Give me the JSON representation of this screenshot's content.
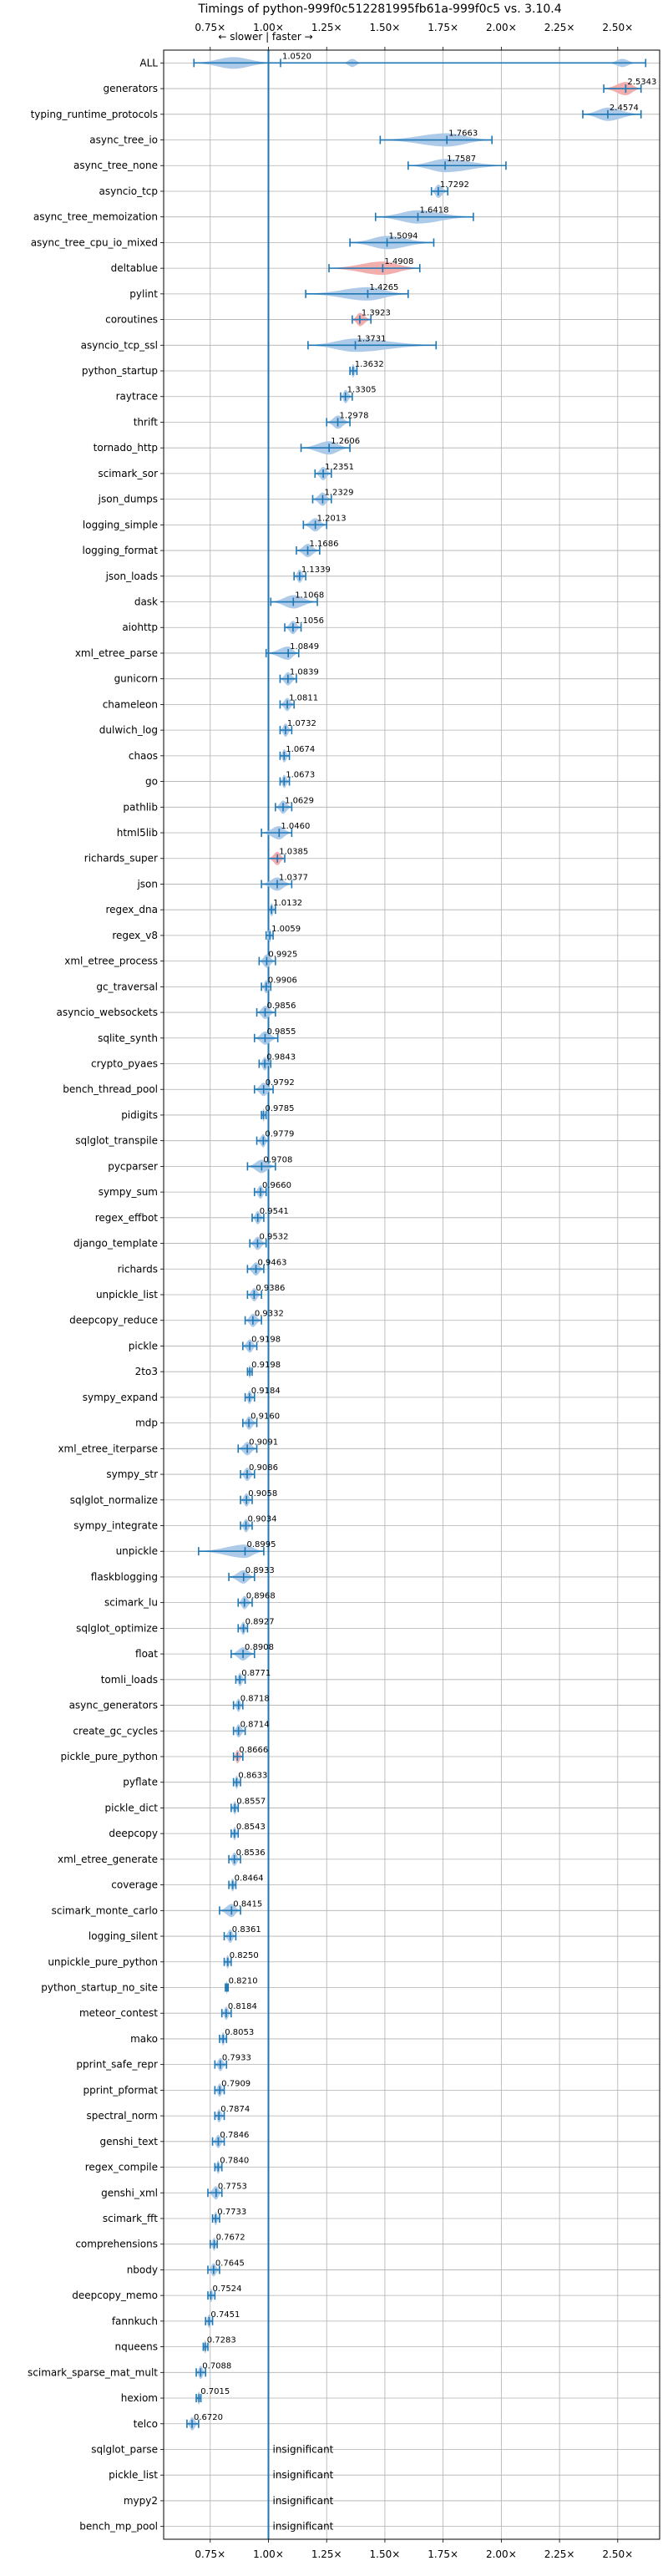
{
  "chart_data": {
    "type": "violin",
    "title": "Timings of python-999f0c512281995fb61a-999f0c5 vs. 3.10.4",
    "direction_label": "← slower | faster →",
    "xlim": [
      0.55,
      2.68
    ],
    "x_ticks": [
      {
        "value": 0.75,
        "label": "0.75×"
      },
      {
        "value": 1.0,
        "label": "1.00×"
      },
      {
        "value": 1.25,
        "label": "1.25×"
      },
      {
        "value": 1.5,
        "label": "1.50×"
      },
      {
        "value": 1.75,
        "label": "1.75×"
      },
      {
        "value": 2.0,
        "label": "2.00×"
      },
      {
        "value": 2.25,
        "label": "2.25×"
      },
      {
        "value": 2.5,
        "label": "2.50×"
      }
    ],
    "grid": true,
    "reference_line": 1.0,
    "colors": {
      "violin_blue": "#a9c8e8",
      "violin_red": "#f1a9a9",
      "line_blue": "#1f77b4",
      "grid": "#b0b0b0",
      "text": "#000000"
    },
    "insignificant_label": "insignificant",
    "benchmarks": [
      {
        "name": "ALL",
        "median": 1.052,
        "label": "1.0520",
        "lo": 0.68,
        "hi": 2.62,
        "mode": "all"
      },
      {
        "name": "generators",
        "median": 2.5343,
        "label": "2.5343",
        "lo": 2.44,
        "hi": 2.6,
        "mode": "red"
      },
      {
        "name": "typing_runtime_protocols",
        "median": 2.4574,
        "label": "2.4574",
        "lo": 2.35,
        "hi": 2.6
      },
      {
        "name": "async_tree_io",
        "median": 1.7663,
        "label": "1.7663",
        "lo": 1.48,
        "hi": 1.96
      },
      {
        "name": "async_tree_none",
        "median": 1.7587,
        "label": "1.7587",
        "lo": 1.6,
        "hi": 2.02
      },
      {
        "name": "asyncio_tcp",
        "median": 1.7292,
        "label": "1.7292",
        "lo": 1.7,
        "hi": 1.77
      },
      {
        "name": "async_tree_memoization",
        "median": 1.6418,
        "label": "1.6418",
        "lo": 1.46,
        "hi": 1.88
      },
      {
        "name": "async_tree_cpu_io_mixed",
        "median": 1.5094,
        "label": "1.5094",
        "lo": 1.35,
        "hi": 1.71
      },
      {
        "name": "deltablue",
        "median": 1.4908,
        "label": "1.4908",
        "lo": 1.26,
        "hi": 1.65,
        "mode": "red"
      },
      {
        "name": "pylint",
        "median": 1.4265,
        "label": "1.4265",
        "lo": 1.16,
        "hi": 1.6
      },
      {
        "name": "coroutines",
        "median": 1.3923,
        "label": "1.3923",
        "lo": 1.36,
        "hi": 1.44,
        "mode": "red"
      },
      {
        "name": "asyncio_tcp_ssl",
        "median": 1.3731,
        "label": "1.3731",
        "lo": 1.17,
        "hi": 1.72
      },
      {
        "name": "python_startup",
        "median": 1.3632,
        "label": "1.3632",
        "lo": 1.35,
        "hi": 1.38
      },
      {
        "name": "raytrace",
        "median": 1.3305,
        "label": "1.3305",
        "lo": 1.31,
        "hi": 1.36
      },
      {
        "name": "thrift",
        "median": 1.2978,
        "label": "1.2978",
        "lo": 1.25,
        "hi": 1.35
      },
      {
        "name": "tornado_http",
        "median": 1.2606,
        "label": "1.2606",
        "lo": 1.14,
        "hi": 1.35
      },
      {
        "name": "scimark_sor",
        "median": 1.2351,
        "label": "1.2351",
        "lo": 1.2,
        "hi": 1.27
      },
      {
        "name": "json_dumps",
        "median": 1.2329,
        "label": "1.2329",
        "lo": 1.19,
        "hi": 1.27
      },
      {
        "name": "logging_simple",
        "median": 1.2013,
        "label": "1.2013",
        "lo": 1.15,
        "hi": 1.25
      },
      {
        "name": "logging_format",
        "median": 1.1686,
        "label": "1.1686",
        "lo": 1.12,
        "hi": 1.22
      },
      {
        "name": "json_loads",
        "median": 1.1339,
        "label": "1.1339",
        "lo": 1.11,
        "hi": 1.16
      },
      {
        "name": "dask",
        "median": 1.1068,
        "label": "1.1068",
        "lo": 1.01,
        "hi": 1.21
      },
      {
        "name": "aiohttp",
        "median": 1.1056,
        "label": "1.1056",
        "lo": 1.07,
        "hi": 1.14
      },
      {
        "name": "xml_etree_parse",
        "median": 1.0849,
        "label": "1.0849",
        "lo": 0.99,
        "hi": 1.13
      },
      {
        "name": "gunicorn",
        "median": 1.0839,
        "label": "1.0839",
        "lo": 1.05,
        "hi": 1.12
      },
      {
        "name": "chameleon",
        "median": 1.0811,
        "label": "1.0811",
        "lo": 1.05,
        "hi": 1.11
      },
      {
        "name": "dulwich_log",
        "median": 1.0732,
        "label": "1.0732",
        "lo": 1.05,
        "hi": 1.1
      },
      {
        "name": "chaos",
        "median": 1.0674,
        "label": "1.0674",
        "lo": 1.05,
        "hi": 1.09
      },
      {
        "name": "go",
        "median": 1.0673,
        "label": "1.0673",
        "lo": 1.05,
        "hi": 1.09
      },
      {
        "name": "pathlib",
        "median": 1.0629,
        "label": "1.0629",
        "lo": 1.03,
        "hi": 1.1
      },
      {
        "name": "html5lib",
        "median": 1.046,
        "label": "1.0460",
        "lo": 0.97,
        "hi": 1.1
      },
      {
        "name": "richards_super",
        "median": 1.0385,
        "label": "1.0385",
        "lo": 1.0,
        "hi": 1.07,
        "mode": "red"
      },
      {
        "name": "json",
        "median": 1.0377,
        "label": "1.0377",
        "lo": 0.97,
        "hi": 1.1
      },
      {
        "name": "regex_dna",
        "median": 1.0132,
        "label": "1.0132",
        "lo": 1.0,
        "hi": 1.03
      },
      {
        "name": "regex_v8",
        "median": 1.0059,
        "label": "1.0059",
        "lo": 0.99,
        "hi": 1.02
      },
      {
        "name": "xml_etree_process",
        "median": 0.9925,
        "label": "0.9925",
        "lo": 0.96,
        "hi": 1.03
      },
      {
        "name": "gc_traversal",
        "median": 0.9906,
        "label": "0.9906",
        "lo": 0.97,
        "hi": 1.01
      },
      {
        "name": "asyncio_websockets",
        "median": 0.9856,
        "label": "0.9856",
        "lo": 0.95,
        "hi": 1.03
      },
      {
        "name": "sqlite_synth",
        "median": 0.9855,
        "label": "0.9855",
        "lo": 0.94,
        "hi": 1.04
      },
      {
        "name": "crypto_pyaes",
        "median": 0.9843,
        "label": "0.9843",
        "lo": 0.96,
        "hi": 1.01
      },
      {
        "name": "bench_thread_pool",
        "median": 0.9792,
        "label": "0.9792",
        "lo": 0.94,
        "hi": 1.02
      },
      {
        "name": "pidigits",
        "median": 0.9785,
        "label": "0.9785",
        "lo": 0.97,
        "hi": 0.99
      },
      {
        "name": "sqlglot_transpile",
        "median": 0.9779,
        "label": "0.9779",
        "lo": 0.95,
        "hi": 1.0
      },
      {
        "name": "pycparser",
        "median": 0.9708,
        "label": "0.9708",
        "lo": 0.91,
        "hi": 1.03
      },
      {
        "name": "sympy_sum",
        "median": 0.966,
        "label": "0.9660",
        "lo": 0.94,
        "hi": 0.99
      },
      {
        "name": "regex_effbot",
        "median": 0.9541,
        "label": "0.9541",
        "lo": 0.93,
        "hi": 0.98
      },
      {
        "name": "django_template",
        "median": 0.9532,
        "label": "0.9532",
        "lo": 0.92,
        "hi": 0.99
      },
      {
        "name": "richards",
        "median": 0.9463,
        "label": "0.9463",
        "lo": 0.91,
        "hi": 0.98
      },
      {
        "name": "unpickle_list",
        "median": 0.9386,
        "label": "0.9386",
        "lo": 0.91,
        "hi": 0.97
      },
      {
        "name": "deepcopy_reduce",
        "median": 0.9332,
        "label": "0.9332",
        "lo": 0.9,
        "hi": 0.97
      },
      {
        "name": "pickle",
        "median": 0.9198,
        "label": "0.9198",
        "lo": 0.89,
        "hi": 0.95
      },
      {
        "name": "2to3",
        "median": 0.9198,
        "label": "0.9198",
        "lo": 0.91,
        "hi": 0.93
      },
      {
        "name": "sympy_expand",
        "median": 0.9184,
        "label": "0.9184",
        "lo": 0.9,
        "hi": 0.94
      },
      {
        "name": "mdp",
        "median": 0.916,
        "label": "0.9160",
        "lo": 0.89,
        "hi": 0.95
      },
      {
        "name": "xml_etree_iterparse",
        "median": 0.9091,
        "label": "0.9091",
        "lo": 0.87,
        "hi": 0.95
      },
      {
        "name": "sympy_str",
        "median": 0.9086,
        "label": "0.9086",
        "lo": 0.88,
        "hi": 0.94
      },
      {
        "name": "sqlglot_normalize",
        "median": 0.9058,
        "label": "0.9058",
        "lo": 0.88,
        "hi": 0.93
      },
      {
        "name": "sympy_integrate",
        "median": 0.9034,
        "label": "0.9034",
        "lo": 0.88,
        "hi": 0.93
      },
      {
        "name": "unpickle",
        "median": 0.8995,
        "label": "0.8995",
        "lo": 0.7,
        "hi": 0.98
      },
      {
        "name": "flaskblogging",
        "median": 0.8933,
        "label": "0.8933",
        "lo": 0.83,
        "hi": 0.94
      },
      {
        "name": "scimark_lu",
        "median": 0.8968,
        "label": "0.8968",
        "lo": 0.87,
        "hi": 0.93
      },
      {
        "name": "sqlglot_optimize",
        "median": 0.8927,
        "label": "0.8927",
        "lo": 0.87,
        "hi": 0.91
      },
      {
        "name": "float",
        "median": 0.8908,
        "label": "0.8908",
        "lo": 0.84,
        "hi": 0.94
      },
      {
        "name": "tomli_loads",
        "median": 0.8771,
        "label": "0.8771",
        "lo": 0.86,
        "hi": 0.9
      },
      {
        "name": "async_generators",
        "median": 0.8718,
        "label": "0.8718",
        "lo": 0.85,
        "hi": 0.89
      },
      {
        "name": "create_gc_cycles",
        "median": 0.8714,
        "label": "0.8714",
        "lo": 0.85,
        "hi": 0.9
      },
      {
        "name": "pickle_pure_python",
        "median": 0.8666,
        "label": "0.8666",
        "lo": 0.85,
        "hi": 0.89,
        "mode": "red"
      },
      {
        "name": "pyflate",
        "median": 0.8633,
        "label": "0.8633",
        "lo": 0.85,
        "hi": 0.88
      },
      {
        "name": "pickle_dict",
        "median": 0.8557,
        "label": "0.8557",
        "lo": 0.84,
        "hi": 0.87
      },
      {
        "name": "deepcopy",
        "median": 0.8543,
        "label": "0.8543",
        "lo": 0.84,
        "hi": 0.87
      },
      {
        "name": "xml_etree_generate",
        "median": 0.8536,
        "label": "0.8536",
        "lo": 0.83,
        "hi": 0.88
      },
      {
        "name": "coverage",
        "median": 0.8464,
        "label": "0.8464",
        "lo": 0.83,
        "hi": 0.86
      },
      {
        "name": "scimark_monte_carlo",
        "median": 0.8415,
        "label": "0.8415",
        "lo": 0.79,
        "hi": 0.88
      },
      {
        "name": "logging_silent",
        "median": 0.8361,
        "label": "0.8361",
        "lo": 0.81,
        "hi": 0.86
      },
      {
        "name": "unpickle_pure_python",
        "median": 0.825,
        "label": "0.8250",
        "lo": 0.81,
        "hi": 0.84
      },
      {
        "name": "python_startup_no_site",
        "median": 0.821,
        "label": "0.8210",
        "lo": 0.815,
        "hi": 0.827
      },
      {
        "name": "meteor_contest",
        "median": 0.8184,
        "label": "0.8184",
        "lo": 0.8,
        "hi": 0.84
      },
      {
        "name": "mako",
        "median": 0.8053,
        "label": "0.8053",
        "lo": 0.79,
        "hi": 0.82
      },
      {
        "name": "pprint_safe_repr",
        "median": 0.7933,
        "label": "0.7933",
        "lo": 0.77,
        "hi": 0.82
      },
      {
        "name": "pprint_pformat",
        "median": 0.7909,
        "label": "0.7909",
        "lo": 0.77,
        "hi": 0.81
      },
      {
        "name": "spectral_norm",
        "median": 0.7874,
        "label": "0.7874",
        "lo": 0.77,
        "hi": 0.81
      },
      {
        "name": "genshi_text",
        "median": 0.7846,
        "label": "0.7846",
        "lo": 0.76,
        "hi": 0.81
      },
      {
        "name": "regex_compile",
        "median": 0.784,
        "label": "0.7840",
        "lo": 0.77,
        "hi": 0.8
      },
      {
        "name": "genshi_xml",
        "median": 0.7753,
        "label": "0.7753",
        "lo": 0.74,
        "hi": 0.8
      },
      {
        "name": "scimark_fft",
        "median": 0.7733,
        "label": "0.7733",
        "lo": 0.76,
        "hi": 0.79
      },
      {
        "name": "comprehensions",
        "median": 0.7672,
        "label": "0.7672",
        "lo": 0.75,
        "hi": 0.78
      },
      {
        "name": "nbody",
        "median": 0.7645,
        "label": "0.7645",
        "lo": 0.74,
        "hi": 0.79
      },
      {
        "name": "deepcopy_memo",
        "median": 0.7524,
        "label": "0.7524",
        "lo": 0.74,
        "hi": 0.77
      },
      {
        "name": "fannkuch",
        "median": 0.7451,
        "label": "0.7451",
        "lo": 0.73,
        "hi": 0.76
      },
      {
        "name": "nqueens",
        "median": 0.7283,
        "label": "0.7283",
        "lo": 0.72,
        "hi": 0.74
      },
      {
        "name": "scimark_sparse_mat_mult",
        "median": 0.7088,
        "label": "0.7088",
        "lo": 0.69,
        "hi": 0.73
      },
      {
        "name": "hexiom",
        "median": 0.7015,
        "label": "0.7015",
        "lo": 0.69,
        "hi": 0.71
      },
      {
        "name": "telco",
        "median": 0.672,
        "label": "0.6720",
        "lo": 0.65,
        "hi": 0.7
      },
      {
        "name": "sqlglot_parse",
        "insignificant": true
      },
      {
        "name": "pickle_list",
        "insignificant": true
      },
      {
        "name": "mypy2",
        "insignificant": true
      },
      {
        "name": "bench_mp_pool",
        "insignificant": true
      }
    ]
  }
}
